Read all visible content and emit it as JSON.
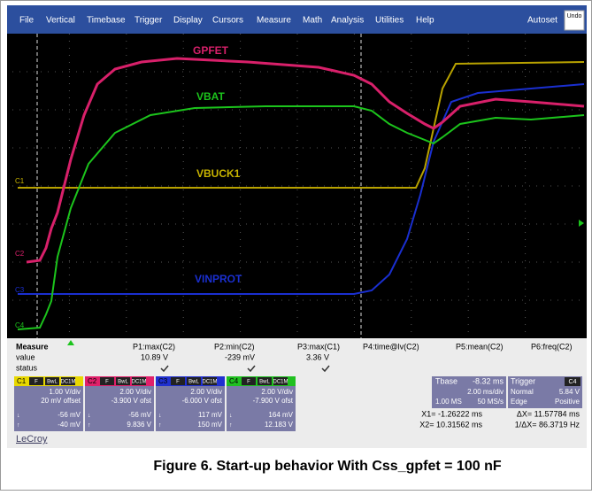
{
  "menu": {
    "items": [
      "File",
      "Vertical",
      "Timebase",
      "Trigger",
      "Display",
      "Cursors",
      "Measure",
      "Math",
      "Analysis",
      "Utilities",
      "Help"
    ],
    "autoset": "Autoset",
    "undo": "Undo"
  },
  "traces": [
    {
      "label": "GPFET",
      "marker": "C2"
    },
    {
      "label": "VBAT",
      "marker": "C4"
    },
    {
      "label": "VBUCK1",
      "marker": "C1"
    },
    {
      "label": "VINPROT",
      "marker": "C3"
    }
  ],
  "measure": {
    "title": "Measure",
    "row_value": "value",
    "row_status": "status",
    "params": [
      {
        "label": "P1:max(C2)",
        "value": "10.89 V"
      },
      {
        "label": "P2:min(C2)",
        "value": "-239 mV"
      },
      {
        "label": "P3:max(C1)",
        "value": "3.36 V"
      },
      {
        "label": "P4:time@lv(C2)"
      },
      {
        "label": "P5:mean(C2)"
      },
      {
        "label": "P6:freq(C2)"
      }
    ]
  },
  "channels": [
    {
      "name": "C1",
      "tags": [
        "F",
        "BwL",
        "DC1M"
      ],
      "vdiv": "1.00 V/div",
      "offset": "20 mV offset",
      "min": "-56 mV",
      "max": "-40 mV"
    },
    {
      "name": "C2",
      "tags": [
        "F",
        "BwL",
        "DC1M"
      ],
      "vdiv": "2.00 V/div",
      "offset": "-3.900 V ofst",
      "min": "-56 mV",
      "max": "9.836 V"
    },
    {
      "name": "C3",
      "tags": [
        "F",
        "BwL",
        "DC1M"
      ],
      "vdiv": "2.00 V/div",
      "offset": "-6.000 V ofst",
      "min": "117 mV",
      "max": "150 mV"
    },
    {
      "name": "C4",
      "tags": [
        "F",
        "BwL",
        "DC1M"
      ],
      "vdiv": "2.00 V/div",
      "offset": "-7.900 V ofst",
      "min": "164 mV",
      "max": "12.183 V"
    }
  ],
  "timebase": {
    "label": "Tbase",
    "value": "-8.32 ms",
    "div": "2.00 ms/div",
    "samples": "1.00 MS",
    "rate": "50 MS/s"
  },
  "trigger": {
    "label": "Trigger",
    "channel": "C4",
    "mode": "Normal",
    "level": "5.84 V",
    "type": "Edge",
    "slope": "Positive"
  },
  "cursors": [
    "X1= -1.26222 ms",
    "ΔX= 11.57784 ms",
    "X2= 10.31562 ms",
    "1/ΔX= 86.3719 Hz"
  ],
  "brand": "LeCroy",
  "caption": "Figure 6. Start-up behavior With Css_gpfet = 100 nF"
}
